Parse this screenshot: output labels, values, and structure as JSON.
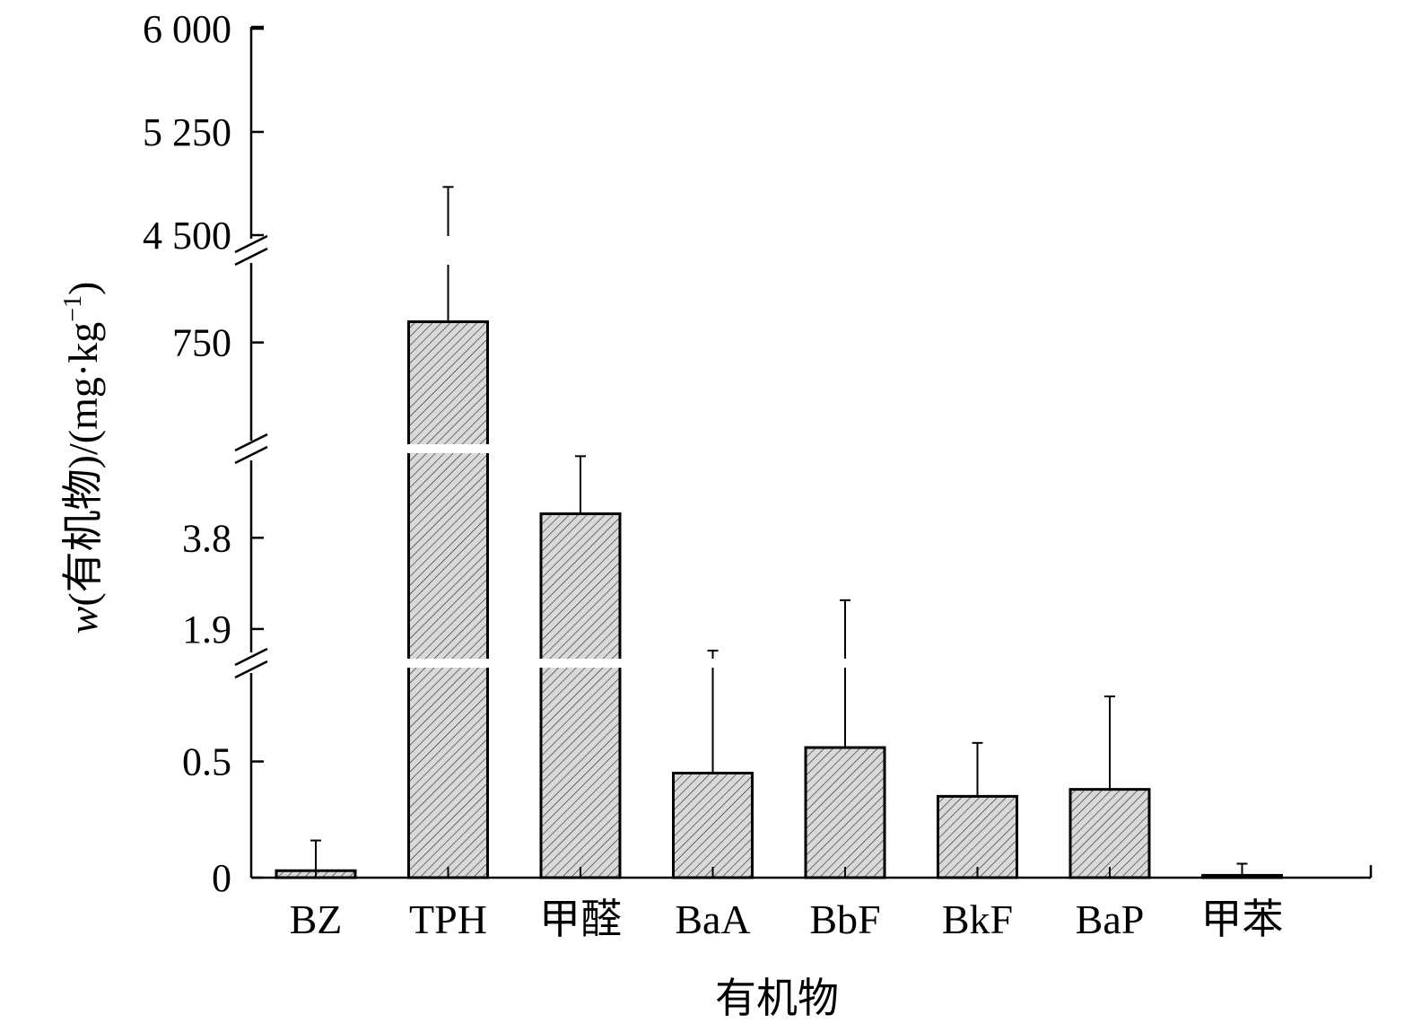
{
  "chart_data": {
    "type": "bar",
    "title": "",
    "xlabel": "有机物",
    "ylabel_prefix": "w",
    "ylabel_body": "(有机物)/(mg·kg",
    "ylabel_sup": "−1",
    "ylabel_suffix": ")",
    "categories": [
      "BZ",
      "TPH",
      "甲醛",
      "BaA",
      "BbF",
      "BkF",
      "BaP",
      "甲苯"
    ],
    "values": [
      0.03,
      780,
      4.3,
      0.45,
      0.56,
      0.35,
      0.38,
      0.01
    ],
    "error_upper": [
      0.16,
      4850,
      5.5,
      1.45,
      2.5,
      0.58,
      0.78,
      0.06
    ],
    "y_scale": "broken",
    "y_segments": [
      {
        "range": [
          0,
          0.9
        ],
        "ticks": [
          0,
          0.5
        ],
        "tick_labels": [
          "0",
          "0.5"
        ]
      },
      {
        "range": [
          1.3,
          5.6
        ],
        "ticks": [
          1.9,
          3.8
        ],
        "tick_labels": [
          "1.9",
          "3.8"
        ]
      },
      {
        "range": [
          600,
          860
        ],
        "ticks": [
          750
        ],
        "tick_labels": [
          "750"
        ]
      },
      {
        "range": [
          4500,
          6000
        ],
        "ticks": [
          4500,
          5250,
          6000
        ],
        "tick_labels": [
          "4 500",
          "5 250",
          "6 000"
        ]
      }
    ],
    "colors": {
      "bar_fill": "#d9d9d9",
      "bar_stroke": "#000000",
      "hatch": "#000000",
      "error_bar": "#000000"
    },
    "grid": false,
    "legend": "none"
  }
}
